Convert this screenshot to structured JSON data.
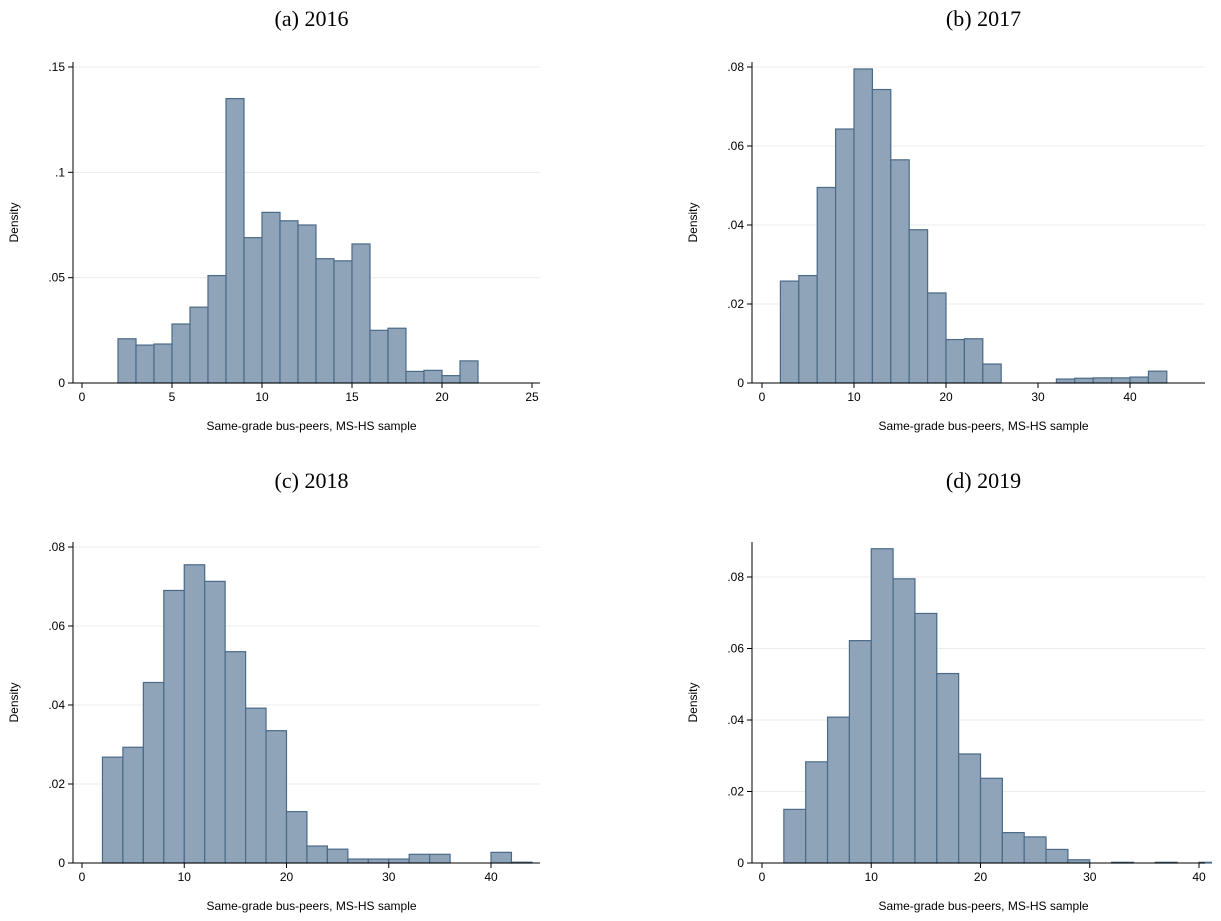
{
  "chart_data": [
    {
      "type": "bar",
      "title": "(a) 2016",
      "xlabel": "Same-grade bus-peers, MS-HS sample",
      "ylabel": "Density",
      "xlim": [
        0,
        25
      ],
      "ylim": [
        0,
        0.15
      ],
      "xticks": [
        0,
        5,
        10,
        15,
        20,
        25
      ],
      "xtick_labels": [
        "0",
        "5",
        "10",
        "15",
        "20",
        "25"
      ],
      "yticks": [
        0,
        0.05,
        0.1,
        0.15
      ],
      "ytick_labels": [
        "0",
        ".05",
        ".1",
        ".15"
      ],
      "grid": true,
      "bin_width": 1,
      "bins": [
        [
          2,
          0.021
        ],
        [
          3,
          0.018
        ],
        [
          4,
          0.0185
        ],
        [
          5,
          0.028
        ],
        [
          6,
          0.036
        ],
        [
          7,
          0.051
        ],
        [
          8,
          0.135
        ],
        [
          9,
          0.069
        ],
        [
          10,
          0.081
        ],
        [
          11,
          0.077
        ],
        [
          12,
          0.075
        ],
        [
          13,
          0.059
        ],
        [
          14,
          0.058
        ],
        [
          15,
          0.066
        ],
        [
          16,
          0.025
        ],
        [
          17,
          0.026
        ],
        [
          18,
          0.0055
        ],
        [
          19,
          0.006
        ],
        [
          20,
          0.0035
        ],
        [
          21,
          0.0105
        ]
      ]
    },
    {
      "type": "bar",
      "title": "(b) 2017",
      "xlabel": "Same-grade bus-peers, MS-HS sample",
      "ylabel": "Density",
      "xlim": [
        0,
        44
      ],
      "ylim": [
        0,
        0.08
      ],
      "xticks": [
        0,
        10,
        20,
        30,
        40
      ],
      "xtick_labels": [
        "0",
        "10",
        "20",
        "30",
        "40"
      ],
      "yticks": [
        0,
        0.02,
        0.04,
        0.06,
        0.08
      ],
      "ytick_labels": [
        "0",
        ".02",
        ".04",
        ".06",
        ".08"
      ],
      "grid": true,
      "bin_width": 2,
      "bins": [
        [
          2,
          0.0258
        ],
        [
          4,
          0.0272
        ],
        [
          6,
          0.0495
        ],
        [
          8,
          0.0643
        ],
        [
          10,
          0.0795
        ],
        [
          12,
          0.0743
        ],
        [
          14,
          0.0565
        ],
        [
          16,
          0.0388
        ],
        [
          18,
          0.0228
        ],
        [
          20,
          0.011
        ],
        [
          22,
          0.0112
        ],
        [
          24,
          0.0048
        ],
        [
          26,
          0
        ],
        [
          28,
          0
        ],
        [
          30,
          0
        ],
        [
          32,
          0.001
        ],
        [
          34,
          0.0012
        ],
        [
          36,
          0.0013
        ],
        [
          38,
          0.0013
        ],
        [
          40,
          0.0015
        ],
        [
          42,
          0.003
        ]
      ]
    },
    {
      "type": "bar",
      "title": "(c) 2018",
      "xlabel": "Same-grade bus-peers, MS-HS sample",
      "ylabel": "Density",
      "xlim": [
        0,
        44
      ],
      "ylim": [
        0,
        0.08
      ],
      "xticks": [
        0,
        10,
        20,
        30,
        40
      ],
      "xtick_labels": [
        "0",
        "10",
        "20",
        "30",
        "40"
      ],
      "yticks": [
        0,
        0.02,
        0.04,
        0.06,
        0.08
      ],
      "ytick_labels": [
        "0",
        ".02",
        ".04",
        ".06",
        ".08"
      ],
      "grid": true,
      "bin_width": 2,
      "bins": [
        [
          2,
          0.0268
        ],
        [
          4,
          0.0293
        ],
        [
          6,
          0.0457
        ],
        [
          8,
          0.069
        ],
        [
          10,
          0.0755
        ],
        [
          12,
          0.0713
        ],
        [
          14,
          0.0535
        ],
        [
          16,
          0.0392
        ],
        [
          18,
          0.0335
        ],
        [
          20,
          0.013
        ],
        [
          22,
          0.0043
        ],
        [
          24,
          0.0035
        ],
        [
          26,
          0.001
        ],
        [
          28,
          0.001
        ],
        [
          30,
          0.001
        ],
        [
          32,
          0.0022
        ],
        [
          34,
          0.0022
        ],
        [
          36,
          0
        ],
        [
          38,
          0
        ],
        [
          40,
          0.0027
        ],
        [
          42,
          0.0002
        ]
      ]
    },
    {
      "type": "bar",
      "title": "(d) 2019",
      "xlabel": "Same-grade bus-peers, MS-HS sample",
      "ylabel": "Density",
      "xlim": [
        0,
        42
      ],
      "ylim": [
        0,
        0.09
      ],
      "xticks": [
        0,
        10,
        20,
        30,
        40
      ],
      "xtick_labels": [
        "0",
        "10",
        "20",
        "30",
        "40"
      ],
      "yticks": [
        0,
        0.02,
        0.04,
        0.06,
        0.08
      ],
      "ytick_labels": [
        "0",
        ".02",
        ".04",
        ".06",
        ".08"
      ],
      "grid": true,
      "bin_width": 2,
      "bins": [
        [
          2,
          0.015
        ],
        [
          4,
          0.0283
        ],
        [
          6,
          0.0408
        ],
        [
          8,
          0.0622
        ],
        [
          10,
          0.0879
        ],
        [
          12,
          0.0795
        ],
        [
          14,
          0.0698
        ],
        [
          16,
          0.053
        ],
        [
          18,
          0.0305
        ],
        [
          20,
          0.0237
        ],
        [
          22,
          0.0085
        ],
        [
          24,
          0.0073
        ],
        [
          26,
          0.0038
        ],
        [
          28,
          0.0009
        ],
        [
          30,
          0
        ],
        [
          32,
          0.0002
        ],
        [
          34,
          0
        ],
        [
          36,
          0.0002
        ],
        [
          38,
          0
        ],
        [
          40,
          0.0002
        ]
      ]
    }
  ]
}
